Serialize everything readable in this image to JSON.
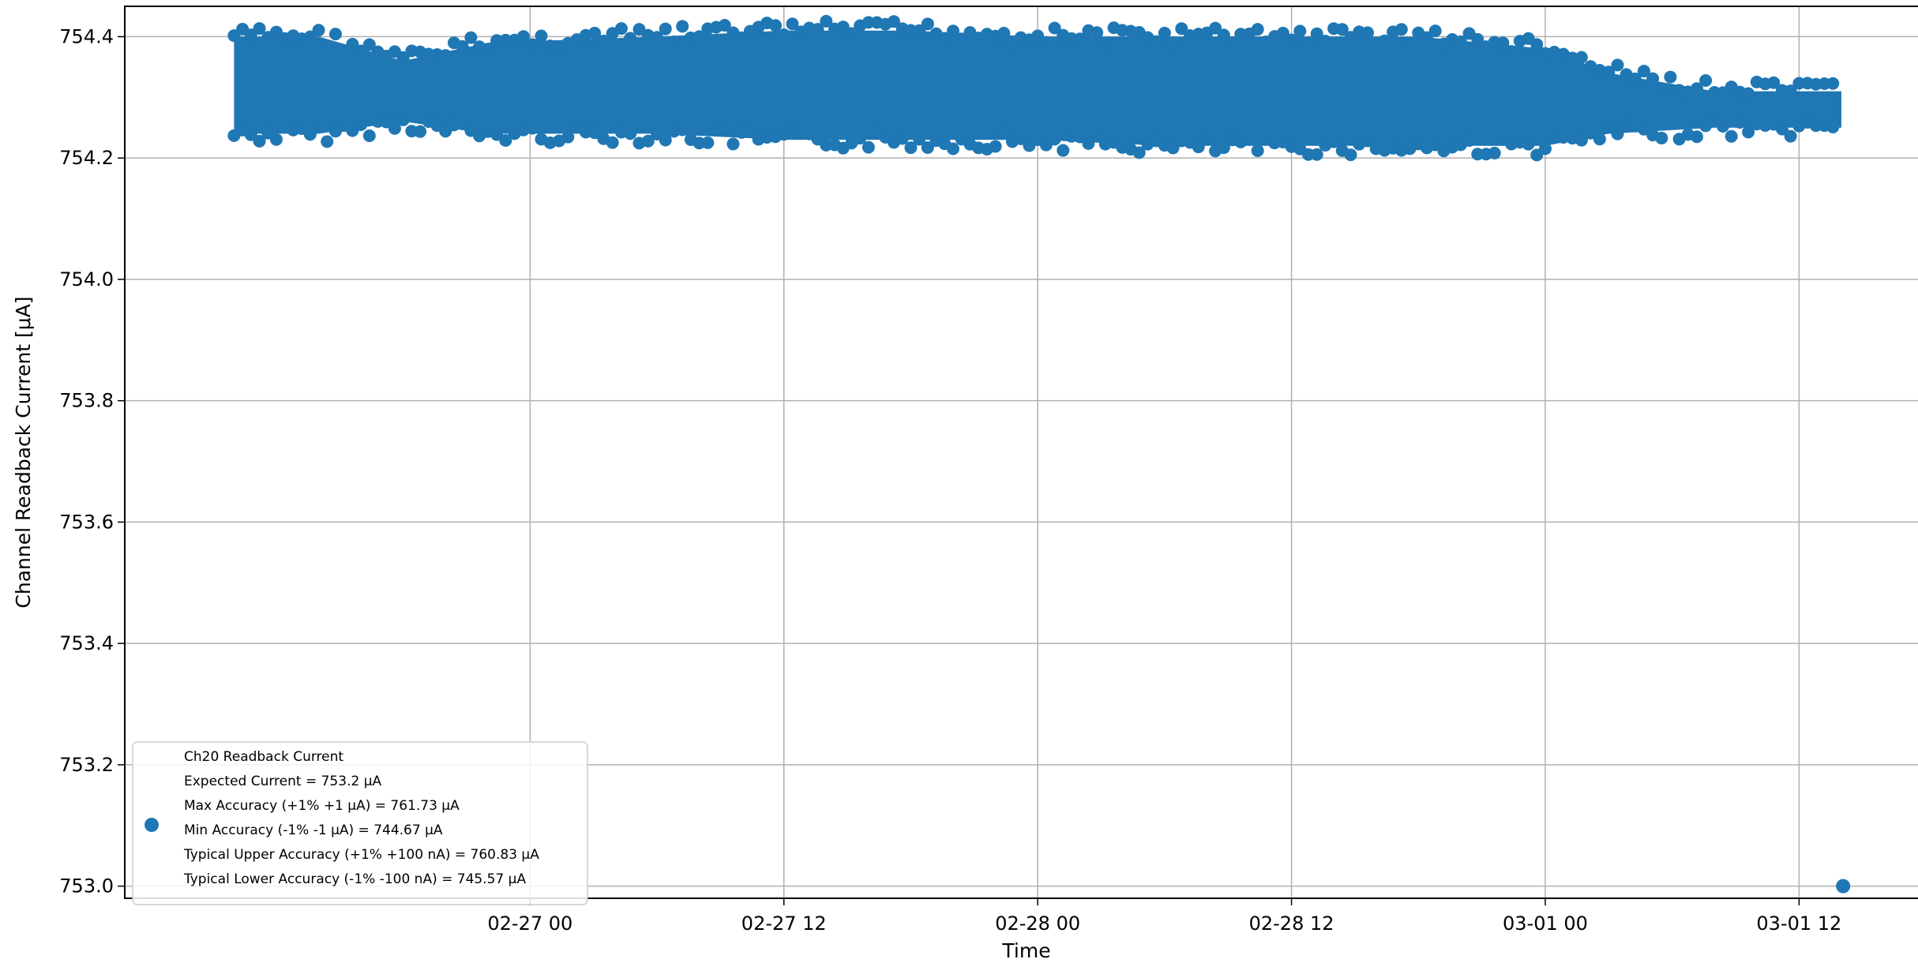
{
  "chart_data": {
    "type": "scatter",
    "title": "",
    "xlabel": "Time",
    "ylabel": "Channel Readback Current [μA]",
    "x_range": [
      "2026-02-26T04:50",
      "2026-03-01T18:20"
    ],
    "ylim": [
      752.98,
      754.45
    ],
    "x_ticks": [
      {
        "value": "2026-02-27T00:00",
        "label": "02-27 00"
      },
      {
        "value": "2026-02-27T12:00",
        "label": "02-27 12"
      },
      {
        "value": "2026-02-28T00:00",
        "label": "02-28 00"
      },
      {
        "value": "2026-02-28T12:00",
        "label": "02-28 12"
      },
      {
        "value": "2026-03-01T00:00",
        "label": "03-01 00"
      },
      {
        "value": "2026-03-01T12:00",
        "label": "03-01 12"
      }
    ],
    "y_ticks": [
      "753.0",
      "753.2",
      "753.4",
      "753.6",
      "753.8",
      "754.0",
      "754.2",
      "754.4"
    ],
    "grid": true,
    "marker_color": "#1f77b4",
    "series": [
      {
        "name": "Ch20 Readback Current",
        "band_profile": [
          {
            "x": "2026-02-26T10:00",
            "low": 754.24,
            "high": 754.4
          },
          {
            "x": "2026-02-26T14:00",
            "low": 754.24,
            "high": 754.4
          },
          {
            "x": "2026-02-26T18:00",
            "low": 754.26,
            "high": 754.36
          },
          {
            "x": "2026-02-26T22:00",
            "low": 754.24,
            "high": 754.39
          },
          {
            "x": "2026-02-27T06:00",
            "low": 754.24,
            "high": 754.4
          },
          {
            "x": "2026-02-27T12:00",
            "low": 754.23,
            "high": 754.41
          },
          {
            "x": "2026-02-27T18:00",
            "low": 754.23,
            "high": 754.41
          },
          {
            "x": "2026-02-28T00:00",
            "low": 754.23,
            "high": 754.4
          },
          {
            "x": "2026-02-28T06:00",
            "low": 754.22,
            "high": 754.4
          },
          {
            "x": "2026-02-28T12:00",
            "low": 754.22,
            "high": 754.4
          },
          {
            "x": "2026-02-28T18:00",
            "low": 754.22,
            "high": 754.4
          },
          {
            "x": "2026-03-01T00:00",
            "low": 754.22,
            "high": 754.38
          },
          {
            "x": "2026-03-01T03:00",
            "low": 754.24,
            "high": 754.34
          },
          {
            "x": "2026-03-01T08:00",
            "low": 754.25,
            "high": 754.31
          },
          {
            "x": "2026-03-01T12:00",
            "low": 754.25,
            "high": 754.31
          },
          {
            "x": "2026-03-01T14:00",
            "low": 754.25,
            "high": 754.31
          }
        ],
        "outliers": [
          {
            "x": "2026-03-01T14:05",
            "y": 753.0
          }
        ]
      }
    ],
    "legend": {
      "placement": "lower-left",
      "lines": [
        "Ch20 Readback Current",
        "Expected Current = 753.2 μA",
        "Max Accuracy (+1% +1 μA) = 761.73 μA",
        "Min Accuracy (-1% -1 μA) = 744.67 μA",
        "Typical Upper Accuracy (+1% +100 nA) = 760.83 μA",
        "Typical Lower Accuracy (-1% -100 nA) = 745.57 μA"
      ]
    }
  }
}
